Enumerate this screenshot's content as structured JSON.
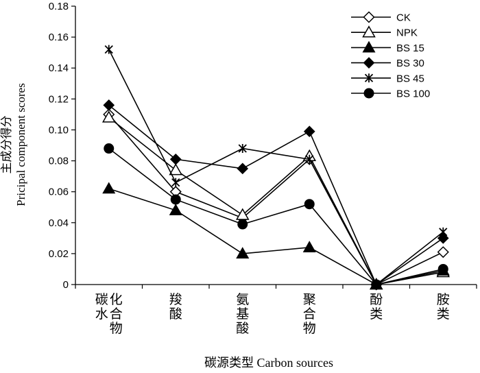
{
  "chart_data": {
    "type": "line",
    "categories": [
      "碳水\n化合物",
      "羧酸",
      "氨基酸",
      "聚合物",
      "酚类",
      "胺类"
    ],
    "xlabel": "碳源类型  Carbon sources",
    "ylabel_cn": "主成分得分",
    "ylabel_en": "Pricipal component scores",
    "ylim": [
      0,
      0.18
    ],
    "yticks": [
      "0",
      "0.02",
      "0.04",
      "0.06",
      "0.08",
      "0.10",
      "0.12",
      "0.14",
      "0.16",
      "0.18"
    ],
    "grid": false,
    "legend_position": "top-right",
    "series": [
      {
        "name": "CK",
        "marker": "open-diamond",
        "values": [
          0.11,
          0.06,
          0.043,
          0.081,
          0.0,
          0.021
        ]
      },
      {
        "name": "NPK",
        "marker": "open-triangle",
        "values": [
          0.108,
          0.074,
          0.045,
          0.083,
          0.0,
          0.008
        ]
      },
      {
        "name": "BS 15",
        "marker": "filled-triangle",
        "values": [
          0.062,
          0.048,
          0.02,
          0.024,
          0.0,
          0.009
        ]
      },
      {
        "name": "BS 30",
        "marker": "filled-diamond",
        "values": [
          0.116,
          0.081,
          0.075,
          0.099,
          0.0,
          0.03
        ]
      },
      {
        "name": "BS 45",
        "marker": "x-cross",
        "values": [
          0.152,
          0.066,
          0.088,
          0.081,
          0.0,
          0.034
        ]
      },
      {
        "name": "BS 100",
        "marker": "filled-circle",
        "values": [
          0.088,
          0.055,
          0.039,
          0.052,
          0.0,
          0.01
        ]
      }
    ]
  }
}
